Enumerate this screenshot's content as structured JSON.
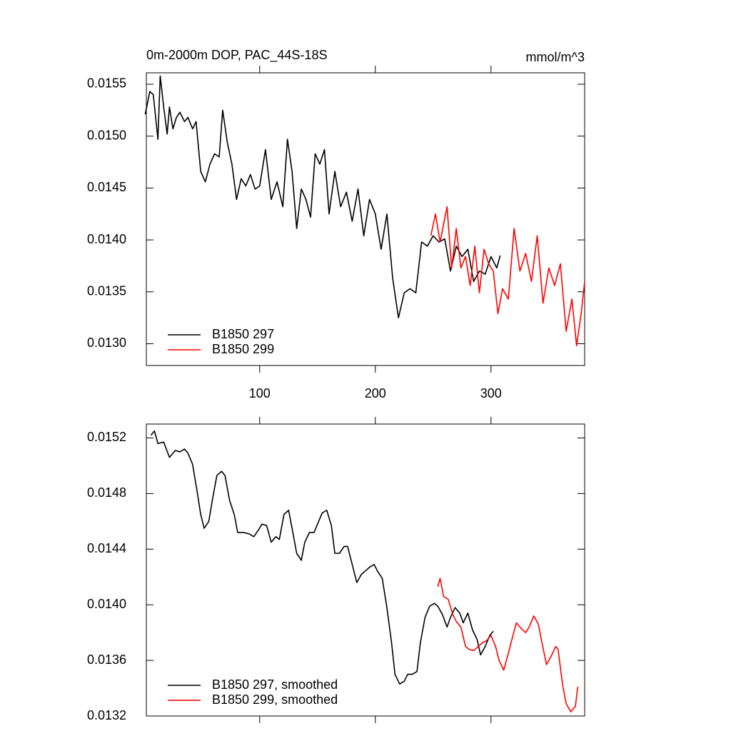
{
  "chart_data": [
    {
      "type": "line",
      "title": "0m-2000m DOP, PAC_44S-18S",
      "units": "mmol/m^3",
      "xlim": [
        2,
        381
      ],
      "xticks": [
        100,
        200,
        300
      ],
      "xtick_labels": true,
      "ylim": [
        0.01279,
        0.01561
      ],
      "yticks": [
        0.0155,
        {
          "value": 0.015,
          "label": "0.0150"
        },
        0.0145,
        {
          "value": 0.014,
          "label": "0.0140"
        },
        0.0135,
        {
          "value": 0.013,
          "label": "0.0130"
        }
      ],
      "legend": "lower left",
      "series": [
        {
          "name": "B1850 297",
          "color": "#000000",
          "x": [
            1,
            5,
            8,
            12,
            14,
            17,
            20,
            22,
            25,
            28,
            31,
            35,
            38,
            42,
            45,
            49,
            53,
            57,
            61,
            65,
            68,
            72,
            76,
            80,
            84,
            88,
            92,
            96,
            100,
            105,
            110,
            115,
            120,
            124,
            128,
            132,
            136,
            140,
            144,
            148,
            152,
            156,
            160,
            165,
            170,
            175,
            180,
            185,
            190,
            195,
            200,
            205,
            210,
            215,
            220,
            225,
            230,
            235,
            240,
            245,
            250,
            255,
            260,
            265,
            270,
            275,
            280,
            285,
            290,
            295,
            300,
            305,
            308
          ],
          "values": [
            0.01521,
            0.01543,
            0.0154,
            0.01497,
            0.01558,
            0.01528,
            0.01502,
            0.01528,
            0.01507,
            0.01518,
            0.01523,
            0.01514,
            0.01518,
            0.01507,
            0.01514,
            0.01466,
            0.01456,
            0.01473,
            0.01483,
            0.0148,
            0.01525,
            0.01494,
            0.01473,
            0.01439,
            0.01459,
            0.01452,
            0.01463,
            0.01449,
            0.01452,
            0.01487,
            0.01439,
            0.01456,
            0.01432,
            0.01497,
            0.01466,
            0.01411,
            0.01449,
            0.01439,
            0.01422,
            0.01483,
            0.01473,
            0.01487,
            0.01425,
            0.01466,
            0.01432,
            0.01446,
            0.01418,
            0.01449,
            0.01404,
            0.01439,
            0.01425,
            0.01391,
            0.01425,
            0.01363,
            0.01325,
            0.01349,
            0.01353,
            0.01349,
            0.01398,
            0.01394,
            0.01404,
            0.01398,
            0.01401,
            0.0137,
            0.01394,
            0.01384,
            0.01391,
            0.0136,
            0.0137,
            0.01367,
            0.01384,
            0.01373,
            0.01385
          ]
        },
        {
          "name": "B1850 299",
          "color": "#ff0000",
          "x": [
            248,
            252,
            256,
            262,
            266,
            270,
            274,
            278,
            282,
            286,
            290,
            294,
            298,
            302,
            306,
            310,
            315,
            320,
            325,
            330,
            335,
            340,
            345,
            350,
            355,
            360,
            365,
            370,
            374,
            378,
            381
          ],
          "values": [
            0.01404,
            0.01425,
            0.01398,
            0.01432,
            0.01373,
            0.01411,
            0.01373,
            0.01384,
            0.01356,
            0.01394,
            0.01349,
            0.01391,
            0.01377,
            0.0137,
            0.01329,
            0.01353,
            0.01343,
            0.01411,
            0.0137,
            0.01387,
            0.0136,
            0.01404,
            0.01339,
            0.01373,
            0.01356,
            0.01377,
            0.01312,
            0.01343,
            0.01298,
            0.01329,
            0.0136
          ]
        }
      ]
    },
    {
      "type": "line",
      "xlim": [
        2,
        381
      ],
      "xticks": [
        100,
        200,
        300
      ],
      "xtick_labels": false,
      "ylim": [
        0.0132,
        0.0153
      ],
      "yticks": [
        0.0152,
        0.0148,
        0.0144,
        {
          "value": 0.014,
          "label": "0.0140"
        },
        0.0136,
        0.0132
      ],
      "legend": "lower left",
      "series": [
        {
          "name": "B1850 297, smoothed",
          "color": "#000000",
          "x": [
            6,
            9,
            12,
            17,
            22,
            27,
            31,
            35,
            38,
            42,
            46,
            49,
            52,
            56,
            59,
            63,
            67,
            70,
            74,
            78,
            81,
            86,
            91,
            95,
            99,
            102,
            106,
            110,
            114,
            117,
            121,
            125,
            128,
            132,
            136,
            139,
            143,
            147,
            151,
            154,
            158,
            162,
            165,
            169,
            173,
            176,
            180,
            184,
            188,
            191,
            195,
            199,
            202,
            206,
            210,
            214,
            217,
            221,
            225,
            228,
            232,
            236,
            239,
            243,
            247,
            251,
            254,
            258,
            262,
            265,
            269,
            273,
            276,
            280,
            284,
            288,
            291,
            295,
            299,
            302
          ],
          "values": [
            0.01522,
            0.01525,
            0.01516,
            0.01517,
            0.01506,
            0.01511,
            0.0151,
            0.01512,
            0.01509,
            0.01501,
            0.01481,
            0.01465,
            0.01455,
            0.0146,
            0.01475,
            0.01493,
            0.01496,
            0.01493,
            0.01475,
            0.01465,
            0.01452,
            0.01452,
            0.01451,
            0.01449,
            0.01454,
            0.01458,
            0.01457,
            0.01445,
            0.01449,
            0.01447,
            0.01465,
            0.01468,
            0.01455,
            0.01437,
            0.01432,
            0.01445,
            0.01452,
            0.01452,
            0.0146,
            0.01466,
            0.01468,
            0.01457,
            0.01437,
            0.01437,
            0.01442,
            0.01442,
            0.01429,
            0.01416,
            0.01422,
            0.01424,
            0.01427,
            0.01429,
            0.01424,
            0.01419,
            0.01398,
            0.01373,
            0.0135,
            0.01343,
            0.01345,
            0.0135,
            0.0135,
            0.01352,
            0.01373,
            0.01391,
            0.01399,
            0.01401,
            0.01399,
            0.01393,
            0.01384,
            0.01391,
            0.01398,
            0.01394,
            0.01387,
            0.01394,
            0.01382,
            0.01375,
            0.01364,
            0.0137,
            0.01378,
            0.01381
          ]
        },
        {
          "name": "B1850 299, smoothed",
          "color": "#ff0000",
          "x": [
            254,
            256,
            259,
            263,
            267,
            270,
            274,
            278,
            281,
            285,
            289,
            293,
            296,
            300,
            304,
            307,
            311,
            315,
            319,
            322,
            326,
            330,
            333,
            337,
            341,
            344,
            348,
            352,
            356,
            358,
            362,
            365,
            369,
            373,
            375
          ],
          "values": [
            0.01413,
            0.01419,
            0.01406,
            0.01404,
            0.01393,
            0.01388,
            0.01384,
            0.0137,
            0.01368,
            0.01367,
            0.0137,
            0.01373,
            0.01374,
            0.01378,
            0.0137,
            0.0136,
            0.01353,
            0.01365,
            0.01378,
            0.01387,
            0.01383,
            0.0138,
            0.01384,
            0.01392,
            0.01386,
            0.01373,
            0.01357,
            0.01363,
            0.0137,
            0.01368,
            0.01342,
            0.01329,
            0.01323,
            0.01327,
            0.01341
          ]
        }
      ]
    }
  ]
}
